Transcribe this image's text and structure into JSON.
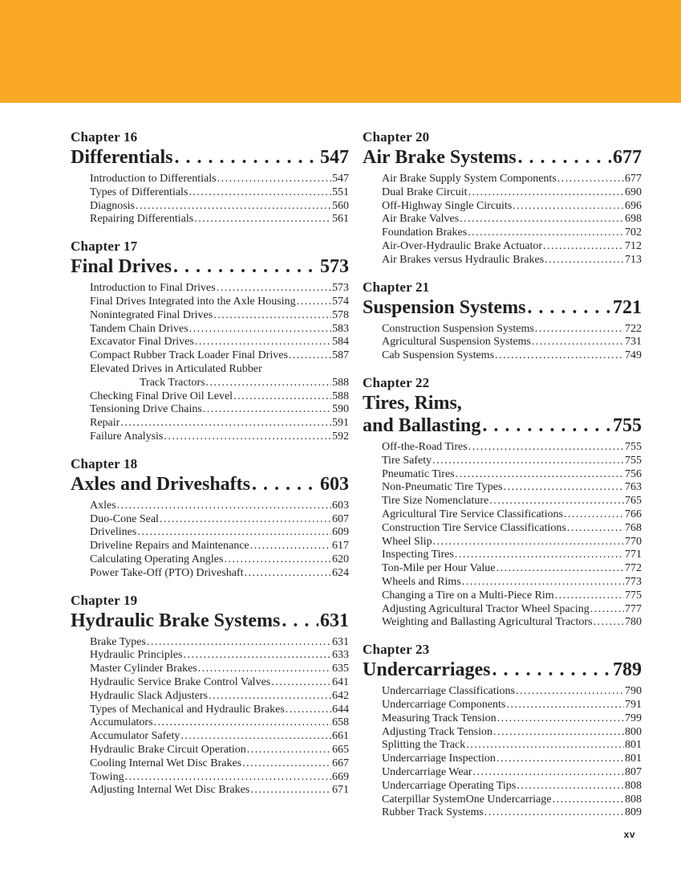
{
  "colors": {
    "band": "#F9A826",
    "text": "#231F20"
  },
  "folio": "xv",
  "columns": [
    {
      "side": "left",
      "chapters": [
        {
          "label": "Chapter 16",
          "title_lines": [
            "Differentials"
          ],
          "page": "547",
          "sections": [
            {
              "title": "Introduction to Differentials",
              "page": "547"
            },
            {
              "title": "Types of Differentials",
              "page": "551"
            },
            {
              "title": "Diagnosis",
              "page": "560"
            },
            {
              "title": "Repairing Differentials",
              "page": "561"
            }
          ]
        },
        {
          "label": "Chapter 17",
          "title_lines": [
            "Final Drives "
          ],
          "page": "573",
          "sections": [
            {
              "title": "Introduction to Final Drives",
              "page": "573"
            },
            {
              "title": "Final Drives Integrated into the Axle Housing",
              "page": "574"
            },
            {
              "title": "Nonintegrated Final Drives",
              "page": "578"
            },
            {
              "title": "Tandem Chain Drives",
              "page": "583"
            },
            {
              "title": "Excavator Final Drives",
              "page": "584"
            },
            {
              "title": "Compact Rubber Track Loader Final Drives",
              "page": "587"
            },
            {
              "title": "Elevated Drives in Articulated Rubber",
              "page": null
            },
            {
              "title": "Track Tractors",
              "page": "588",
              "indent": true
            },
            {
              "title": "Checking Final Drive Oil Level",
              "page": "588"
            },
            {
              "title": "Tensioning Drive Chains",
              "page": "590"
            },
            {
              "title": "Repair",
              "page": "591"
            },
            {
              "title": "Failure Analysis",
              "page": "592"
            }
          ]
        },
        {
          "label": "Chapter 18",
          "title_lines": [
            "Axles and Driveshafts"
          ],
          "page": "603",
          "sections": [
            {
              "title": "Axles",
              "page": "603"
            },
            {
              "title": "Duo-Cone Seal",
              "page": "607"
            },
            {
              "title": "Drivelines",
              "page": "609"
            },
            {
              "title": "Driveline Repairs and Maintenance",
              "page": "617"
            },
            {
              "title": "Calculating Operating Angles",
              "page": "620"
            },
            {
              "title": "Power Take-Off (PTO) Driveshaft",
              "page": "624"
            }
          ]
        },
        {
          "label": "Chapter 19",
          "title_lines": [
            "Hydraulic Brake Systems"
          ],
          "page": "631",
          "sections": [
            {
              "title": "Brake Types",
              "page": "631"
            },
            {
              "title": "Hydraulic Principles",
              "page": "633"
            },
            {
              "title": "Master Cylinder Brakes",
              "page": "635"
            },
            {
              "title": "Hydraulic Service Brake Control Valves",
              "page": "641"
            },
            {
              "title": "Hydraulic Slack Adjusters",
              "page": "642"
            },
            {
              "title": "Types of Mechanical and Hydraulic Brakes",
              "page": "644"
            },
            {
              "title": "Accumulators",
              "page": "658"
            },
            {
              "title": "Accumulator Safety",
              "page": "661"
            },
            {
              "title": "Hydraulic Brake Circuit Operation",
              "page": "665"
            },
            {
              "title": "Cooling Internal Wet Disc Brakes",
              "page": "667"
            },
            {
              "title": "Towing",
              "page": "669"
            },
            {
              "title": "Adjusting Internal Wet Disc Brakes",
              "page": "671"
            }
          ]
        }
      ]
    },
    {
      "side": "right",
      "chapters": [
        {
          "label": "Chapter 20",
          "title_lines": [
            "Air Brake Systems "
          ],
          "page": "677",
          "sections": [
            {
              "title": "Air Brake Supply System Components",
              "page": "677"
            },
            {
              "title": "Dual Brake Circuit",
              "page": "690"
            },
            {
              "title": "Off-Highway Single Circuits",
              "page": "696"
            },
            {
              "title": "Air Brake Valves",
              "page": "698"
            },
            {
              "title": "Foundation Brakes",
              "page": "702"
            },
            {
              "title": "Air-Over-Hydraulic Brake Actuator",
              "page": "712"
            },
            {
              "title": "Air Brakes versus Hydraulic Brakes",
              "page": "713"
            }
          ]
        },
        {
          "label": "Chapter 21",
          "title_lines": [
            "Suspension Systems"
          ],
          "page": "721",
          "sections": [
            {
              "title": "Construction Suspension Systems",
              "page": "722"
            },
            {
              "title": "Agricultural Suspension Systems",
              "page": "731"
            },
            {
              "title": "Cab Suspension Systems",
              "page": "749"
            }
          ]
        },
        {
          "label": "Chapter 22",
          "title_lines": [
            "Tires, Rims,",
            "and Ballasting"
          ],
          "page": "755",
          "sections": [
            {
              "title": "Off-the-Road Tires",
              "page": "755"
            },
            {
              "title": "Tire Safety",
              "page": "755"
            },
            {
              "title": "Pneumatic Tires",
              "page": "756"
            },
            {
              "title": "Non-Pneumatic Tire Types",
              "page": "763"
            },
            {
              "title": "Tire Size Nomenclature",
              "page": "765"
            },
            {
              "title": "Agricultural Tire Service Classifications",
              "page": "766"
            },
            {
              "title": "Construction Tire Service Classifications",
              "page": "768"
            },
            {
              "title": "Wheel Slip",
              "page": "770"
            },
            {
              "title": "Inspecting Tires",
              "page": "771"
            },
            {
              "title": "Ton-Mile per Hour Value",
              "page": "772"
            },
            {
              "title": "Wheels and Rims",
              "page": "773"
            },
            {
              "title": "Changing a Tire on a Multi-Piece Rim",
              "page": "775"
            },
            {
              "title": "Adjusting Agricultural Tractor Wheel Spacing",
              "page": "777"
            },
            {
              "title": "Weighting and Ballasting Agricultural Tractors",
              "page": "780"
            }
          ]
        },
        {
          "label": "Chapter 23",
          "title_lines": [
            "Undercarriages"
          ],
          "page": "789",
          "sections": [
            {
              "title": "Undercarriage Classifications",
              "page": "790"
            },
            {
              "title": "Undercarriage Components",
              "page": "791"
            },
            {
              "title": "Measuring Track Tension",
              "page": "799"
            },
            {
              "title": "Adjusting Track Tension",
              "page": "800"
            },
            {
              "title": "Splitting the Track",
              "page": "801"
            },
            {
              "title": "Undercarriage Inspection",
              "page": "801"
            },
            {
              "title": "Undercarriage Wear",
              "page": "807"
            },
            {
              "title": "Undercarriage Operating Tips",
              "page": "808"
            },
            {
              "title": "Caterpillar SystemOne Undercarriage",
              "page": "808"
            },
            {
              "title": "Rubber Track Systems",
              "page": "809"
            }
          ]
        }
      ]
    }
  ]
}
